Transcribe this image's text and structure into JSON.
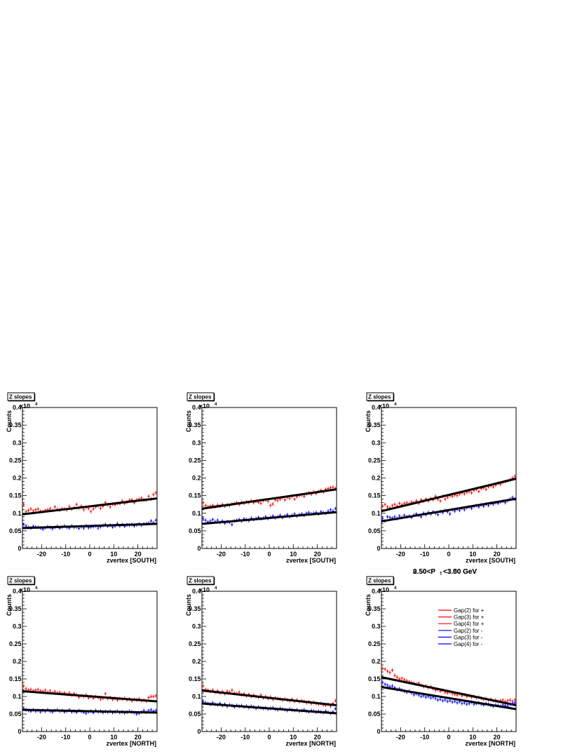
{
  "colors": {
    "plus": "#ff0000",
    "minus": "#0000ff",
    "fit": "#000000"
  },
  "overlay_label": {
    "text_a": "0.50<P",
    "sub": "T",
    "text_b": "<3.00 GeV",
    "overlap_a": "2.50<P",
    "overlap_b": "<3.50 GeV"
  },
  "legend": {
    "entries": [
      {
        "label": "Gap(2) for +",
        "color": "#ff0000"
      },
      {
        "label": "Gap(3) for +",
        "color": "#ff0000"
      },
      {
        "label": "Gap(4) for +",
        "color": "#ff0000"
      },
      {
        "label": "Gap(2) for -",
        "color": "#0000ff"
      },
      {
        "label": "Gap(3) for -",
        "color": "#0000ff"
      },
      {
        "label": "Gap(4) for -",
        "color": "#0000ff"
      }
    ]
  },
  "chart_data": [
    {
      "type": "scatter",
      "title": "Z slopes",
      "xlabel": "zvertex [SOUTH]",
      "ylabel": "Counts",
      "yexp": "x10",
      "yexp_pow": "4",
      "xlim": [
        -28,
        28
      ],
      "ylim": [
        0,
        0.4
      ],
      "xticks": [
        "-20",
        "-10",
        "0",
        "10",
        "20"
      ],
      "yticks": [
        "0",
        "0.05",
        "0.1",
        "0.15",
        "0.2",
        "0.25",
        "0.3",
        "0.35",
        "0.4"
      ],
      "series": [
        {
          "sign": "+",
          "y": [
            0.125,
            0.105,
            0.108,
            0.112,
            0.107,
            0.11,
            0.112,
            0.106,
            0.105,
            0.108,
            0.11,
            0.113,
            0.108,
            0.118,
            0.111,
            0.109,
            0.113,
            0.112,
            0.11,
            0.119,
            0.112,
            0.116,
            0.125,
            0.115,
            0.12,
            0.11,
            0.117,
            0.113,
            0.105,
            0.112,
            0.118,
            0.121,
            0.114,
            0.12,
            0.13,
            0.124,
            0.118,
            0.126,
            0.124,
            0.128,
            0.128,
            0.135,
            0.128,
            0.132,
            0.137,
            0.138,
            0.13,
            0.138,
            0.14,
            0.143,
            0.138,
            0.137,
            0.148,
            0.14,
            0.153,
            0.158
          ],
          "fit": [
            0.097,
            0.142
          ]
        },
        {
          "sign": "-",
          "y": [
            0.068,
            0.064,
            0.06,
            0.058,
            0.063,
            0.061,
            0.06,
            0.058,
            0.055,
            0.059,
            0.062,
            0.06,
            0.056,
            0.06,
            0.063,
            0.058,
            0.061,
            0.064,
            0.06,
            0.058,
            0.064,
            0.06,
            0.061,
            0.057,
            0.062,
            0.058,
            0.064,
            0.059,
            0.061,
            0.062,
            0.064,
            0.058,
            0.062,
            0.065,
            0.068,
            0.063,
            0.066,
            0.061,
            0.064,
            0.07,
            0.064,
            0.068,
            0.063,
            0.067,
            0.066,
            0.068,
            0.064,
            0.067,
            0.07,
            0.066,
            0.07,
            0.07,
            0.072,
            0.078,
            0.073,
            0.08
          ],
          "fit": [
            0.058,
            0.07
          ]
        }
      ]
    },
    {
      "type": "scatter",
      "title": "Z slopes",
      "xlabel": "zvertex [SOUTH]",
      "ylabel": "Counts",
      "yexp": "x10",
      "yexp_pow": "4",
      "xlim": [
        -28,
        28
      ],
      "ylim": [
        0,
        0.4
      ],
      "xticks": [
        "-20",
        "-10",
        "0",
        "10",
        "20"
      ],
      "yticks": [
        "0",
        "0.05",
        "0.1",
        "0.15",
        "0.2",
        "0.25",
        "0.3",
        "0.35",
        "0.4"
      ],
      "series": [
        {
          "sign": "+",
          "y": [
            0.13,
            0.122,
            0.118,
            0.12,
            0.122,
            0.118,
            0.123,
            0.12,
            0.125,
            0.12,
            0.124,
            0.122,
            0.126,
            0.127,
            0.13,
            0.125,
            0.131,
            0.128,
            0.132,
            0.13,
            0.135,
            0.13,
            0.134,
            0.131,
            0.128,
            0.136,
            0.138,
            0.134,
            0.122,
            0.126,
            0.138,
            0.136,
            0.14,
            0.144,
            0.138,
            0.145,
            0.142,
            0.148,
            0.14,
            0.147,
            0.15,
            0.152,
            0.148,
            0.155,
            0.158,
            0.154,
            0.16,
            0.156,
            0.162,
            0.165,
            0.16,
            0.168,
            0.17,
            0.172,
            0.174,
            0.17
          ],
          "fit": [
            0.113,
            0.168
          ]
        },
        {
          "sign": "-",
          "y": [
            0.085,
            0.08,
            0.075,
            0.078,
            0.082,
            0.076,
            0.08,
            0.074,
            0.078,
            0.072,
            0.076,
            0.074,
            0.068,
            0.078,
            0.08,
            0.082,
            0.078,
            0.084,
            0.082,
            0.079,
            0.086,
            0.082,
            0.085,
            0.088,
            0.084,
            0.086,
            0.09,
            0.085,
            0.088,
            0.092,
            0.087,
            0.09,
            0.094,
            0.088,
            0.092,
            0.096,
            0.09,
            0.094,
            0.098,
            0.092,
            0.096,
            0.098,
            0.094,
            0.1,
            0.102,
            0.098,
            0.1,
            0.102,
            0.098,
            0.104,
            0.102,
            0.1,
            0.106,
            0.11,
            0.106,
            0.113
          ],
          "fit": [
            0.07,
            0.103
          ]
        }
      ]
    },
    {
      "type": "scatter",
      "title": "Z slopes",
      "xlabel": "zvertex [SOUTH]",
      "ylabel": "Counts",
      "yexp": "x10",
      "yexp_pow": "4",
      "xlim": [
        -28,
        28
      ],
      "ylim": [
        0,
        0.4
      ],
      "xticks": [
        "-20",
        "-10",
        "0",
        "10",
        "20"
      ],
      "yticks": [
        "0",
        "0.05",
        "0.1",
        "0.15",
        "0.2",
        "0.25",
        "0.3",
        "0.35",
        "0.4"
      ],
      "series": [
        {
          "sign": "+",
          "y": [
            0.12,
            0.125,
            0.118,
            0.115,
            0.122,
            0.125,
            0.12,
            0.128,
            0.124,
            0.128,
            0.13,
            0.126,
            0.132,
            0.13,
            0.135,
            0.128,
            0.138,
            0.134,
            0.14,
            0.135,
            0.142,
            0.138,
            0.148,
            0.14,
            0.135,
            0.148,
            0.14,
            0.145,
            0.15,
            0.148,
            0.152,
            0.15,
            0.155,
            0.158,
            0.155,
            0.16,
            0.162,
            0.158,
            0.165,
            0.168,
            0.162,
            0.17,
            0.172,
            0.168,
            0.175,
            0.178,
            0.175,
            0.18,
            0.185,
            0.182,
            0.188,
            0.19,
            0.192,
            0.195,
            0.2,
            0.205
          ],
          "fit": [
            0.106,
            0.198
          ]
        },
        {
          "sign": "-",
          "y": [
            0.085,
            0.078,
            0.09,
            0.088,
            0.086,
            0.09,
            0.085,
            0.092,
            0.088,
            0.094,
            0.09,
            0.092,
            0.088,
            0.095,
            0.098,
            0.094,
            0.09,
            0.1,
            0.096,
            0.102,
            0.098,
            0.104,
            0.1,
            0.096,
            0.105,
            0.102,
            0.108,
            0.104,
            0.098,
            0.11,
            0.106,
            0.112,
            0.108,
            0.114,
            0.11,
            0.116,
            0.118,
            0.114,
            0.12,
            0.122,
            0.118,
            0.124,
            0.12,
            0.126,
            0.122,
            0.128,
            0.126,
            0.13,
            0.128,
            0.132,
            0.134,
            0.13,
            0.136,
            0.14,
            0.145,
            0.14
          ],
          "fit": [
            0.077,
            0.141
          ]
        }
      ]
    },
    {
      "type": "scatter",
      "title": "Z slopes",
      "xlabel": "zvertex [NORTH]",
      "ylabel": "Counts",
      "yexp": "x10",
      "yexp_pow": "4",
      "xlim": [
        -28,
        28
      ],
      "ylim": [
        0,
        0.4
      ],
      "xticks": [
        "-20",
        "-10",
        "0",
        "10",
        "20"
      ],
      "yticks": [
        "0",
        "0.05",
        "0.1",
        "0.15",
        "0.2",
        "0.25",
        "0.3",
        "0.35",
        "0.4"
      ],
      "series": [
        {
          "sign": "+",
          "y": [
            0.13,
            0.122,
            0.118,
            0.12,
            0.116,
            0.118,
            0.12,
            0.116,
            0.114,
            0.118,
            0.112,
            0.116,
            0.11,
            0.114,
            0.11,
            0.112,
            0.108,
            0.11,
            0.106,
            0.11,
            0.104,
            0.108,
            0.105,
            0.098,
            0.102,
            0.1,
            0.104,
            0.096,
            0.1,
            0.095,
            0.1,
            0.097,
            0.092,
            0.095,
            0.108,
            0.094,
            0.097,
            0.092,
            0.095,
            0.09,
            0.094,
            0.092,
            0.095,
            0.09,
            0.093,
            0.088,
            0.092,
            0.09,
            0.093,
            0.088,
            0.09,
            0.087,
            0.097,
            0.1,
            0.1,
            0.102
          ],
          "fit": [
            0.115,
            0.086
          ]
        },
        {
          "sign": "-",
          "y": [
            0.065,
            0.062,
            0.06,
            0.058,
            0.062,
            0.058,
            0.06,
            0.056,
            0.06,
            0.058,
            0.062,
            0.058,
            0.056,
            0.06,
            0.062,
            0.058,
            0.06,
            0.056,
            0.058,
            0.062,
            0.056,
            0.058,
            0.055,
            0.06,
            0.058,
            0.055,
            0.052,
            0.056,
            0.058,
            0.054,
            0.06,
            0.056,
            0.058,
            0.054,
            0.057,
            0.055,
            0.058,
            0.054,
            0.056,
            0.058,
            0.054,
            0.056,
            0.053,
            0.055,
            0.058,
            0.056,
            0.054,
            0.05,
            0.052,
            0.055,
            0.06,
            0.055,
            0.06,
            0.062,
            0.058,
            0.06
          ],
          "fit": [
            0.062,
            0.054
          ]
        }
      ]
    },
    {
      "type": "scatter",
      "title": "Z slopes",
      "xlabel": "zvertex [NORTH]",
      "ylabel": "Counts",
      "yexp": "x10",
      "yexp_pow": "4",
      "xlim": [
        -28,
        28
      ],
      "ylim": [
        0,
        0.4
      ],
      "xticks": [
        "-20",
        "-10",
        "0",
        "10",
        "20"
      ],
      "yticks": [
        "0",
        "0.05",
        "0.1",
        "0.15",
        "0.2",
        "0.25",
        "0.3",
        "0.35",
        "0.4"
      ],
      "series": [
        {
          "sign": "+",
          "y": [
            0.13,
            0.12,
            0.118,
            0.115,
            0.118,
            0.112,
            0.116,
            0.11,
            0.114,
            0.108,
            0.115,
            0.112,
            0.118,
            0.11,
            0.108,
            0.112,
            0.105,
            0.108,
            0.102,
            0.106,
            0.1,
            0.104,
            0.1,
            0.098,
            0.104,
            0.096,
            0.1,
            0.094,
            0.098,
            0.092,
            0.096,
            0.094,
            0.092,
            0.09,
            0.093,
            0.09,
            0.088,
            0.092,
            0.086,
            0.09,
            0.085,
            0.088,
            0.086,
            0.082,
            0.085,
            0.08,
            0.083,
            0.08,
            0.078,
            0.08,
            0.076,
            0.075,
            0.078,
            0.072,
            0.08,
            0.088
          ],
          "fit": [
            0.117,
            0.075
          ]
        },
        {
          "sign": "-",
          "y": [
            0.085,
            0.082,
            0.08,
            0.078,
            0.082,
            0.078,
            0.076,
            0.08,
            0.074,
            0.078,
            0.072,
            0.076,
            0.074,
            0.07,
            0.075,
            0.072,
            0.074,
            0.07,
            0.072,
            0.068,
            0.072,
            0.07,
            0.066,
            0.07,
            0.068,
            0.066,
            0.068,
            0.064,
            0.066,
            0.068,
            0.064,
            0.062,
            0.066,
            0.064,
            0.062,
            0.06,
            0.064,
            0.062,
            0.06,
            0.062,
            0.058,
            0.06,
            0.062,
            0.058,
            0.056,
            0.06,
            0.058,
            0.055,
            0.058,
            0.056,
            0.054,
            0.058,
            0.055,
            0.052,
            0.056,
            0.065
          ],
          "fit": [
            0.08,
            0.052
          ]
        }
      ]
    },
    {
      "type": "scatter",
      "title": "Z slopes",
      "xlabel": "zvertex [NORTH]",
      "ylabel": "Counts",
      "yexp": "x10",
      "yexp_pow": "4",
      "xlim": [
        -28,
        28
      ],
      "ylim": [
        0,
        0.4
      ],
      "xticks": [
        "-20",
        "-10",
        "0",
        "10",
        "20"
      ],
      "yticks": [
        "0",
        "0.05",
        "0.1",
        "0.15",
        "0.2",
        "0.25",
        "0.3",
        "0.35",
        "0.4"
      ],
      "series": [
        {
          "sign": "+",
          "y": [
            0.18,
            0.178,
            0.172,
            0.168,
            0.175,
            0.16,
            0.155,
            0.15,
            0.152,
            0.148,
            0.145,
            0.142,
            0.14,
            0.138,
            0.135,
            0.138,
            0.132,
            0.128,
            0.13,
            0.125,
            0.128,
            0.122,
            0.118,
            0.12,
            0.115,
            0.118,
            0.112,
            0.11,
            0.112,
            0.108,
            0.106,
            0.104,
            0.108,
            0.102,
            0.105,
            0.1,
            0.102,
            0.098,
            0.1,
            0.096,
            0.098,
            0.095,
            0.092,
            0.094,
            0.09,
            0.092,
            0.088,
            0.09,
            0.086,
            0.088,
            0.09,
            0.085,
            0.088,
            0.09,
            0.086,
            0.09
          ],
          "fit": [
            0.155,
            0.075
          ]
        },
        {
          "sign": "-",
          "y": [
            0.14,
            0.135,
            0.132,
            0.128,
            0.13,
            0.125,
            0.12,
            0.122,
            0.118,
            0.115,
            0.112,
            0.115,
            0.11,
            0.105,
            0.108,
            0.104,
            0.1,
            0.102,
            0.098,
            0.1,
            0.096,
            0.098,
            0.094,
            0.09,
            0.092,
            0.088,
            0.09,
            0.086,
            0.088,
            0.084,
            0.086,
            0.082,
            0.085,
            0.08,
            0.082,
            0.078,
            0.08,
            0.084,
            0.078,
            0.08,
            0.082,
            0.078,
            0.076,
            0.08,
            0.078,
            0.075,
            0.072,
            0.076,
            0.074,
            0.072,
            0.076,
            0.074,
            0.072,
            0.078,
            0.08,
            0.082
          ],
          "fit": [
            0.127,
            0.064
          ]
        }
      ]
    }
  ]
}
